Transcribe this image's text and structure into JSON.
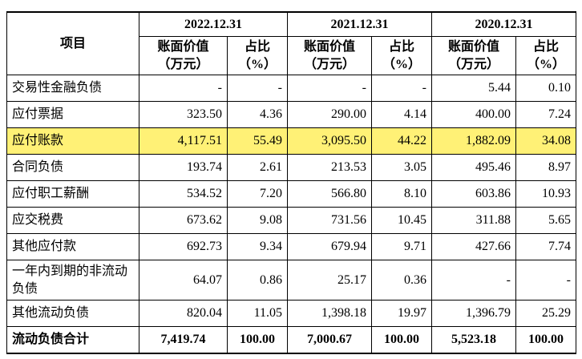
{
  "table": {
    "header": {
      "item": "项目",
      "periods": [
        "2022.12.31",
        "2021.12.31",
        "2020.12.31"
      ],
      "subcolumns": [
        "账面价值\n（万元）",
        "占比\n（%）"
      ]
    },
    "rows": [
      [
        "交易性金融负债",
        "-",
        "-",
        "-",
        "-",
        "5.44",
        "0.10"
      ],
      [
        "应付票据",
        "323.50",
        "4.36",
        "290.00",
        "4.14",
        "400.00",
        "7.24"
      ],
      [
        "应付账款",
        "4,117.51",
        "55.49",
        "3,095.50",
        "44.22",
        "1,882.09",
        "34.08"
      ],
      [
        "合同负债",
        "193.74",
        "2.61",
        "213.53",
        "3.05",
        "495.46",
        "8.97"
      ],
      [
        "应付职工薪酬",
        "534.52",
        "7.20",
        "566.80",
        "8.10",
        "603.86",
        "10.93"
      ],
      [
        "应交税费",
        "673.62",
        "9.08",
        "731.56",
        "10.45",
        "311.88",
        "5.65"
      ],
      [
        "其他应付款",
        "692.73",
        "9.34",
        "679.94",
        "9.71",
        "427.66",
        "7.74"
      ],
      [
        "一年内到期的非流动负债",
        "64.07",
        "0.86",
        "25.17",
        "0.36",
        "-",
        "-"
      ],
      [
        "其他流动负债",
        "820.04",
        "11.05",
        "1,398.18",
        "19.97",
        "1,396.79",
        "25.29"
      ],
      [
        "流动负债合计",
        "7,419.74",
        "100.00",
        "7,000.67",
        "100.00",
        "5,523.18",
        "100.00"
      ]
    ]
  }
}
